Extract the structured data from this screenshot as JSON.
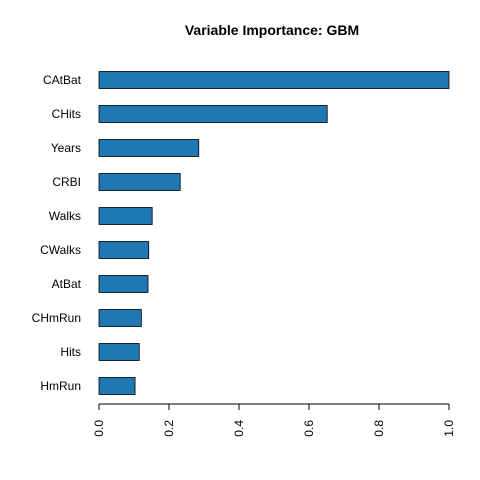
{
  "chart_data": {
    "type": "bar",
    "orientation": "horizontal",
    "title": "Variable Importance: GBM",
    "xlabel": "",
    "ylabel": "",
    "categories": [
      "CAtBat",
      "CHits",
      "Years",
      "CRBI",
      "Walks",
      "CWalks",
      "AtBat",
      "CHmRun",
      "Hits",
      "HmRun"
    ],
    "values": [
      1.0,
      0.652,
      0.285,
      0.232,
      0.152,
      0.142,
      0.14,
      0.121,
      0.115,
      0.103
    ],
    "xlim": [
      0,
      1
    ],
    "x_ticks": [
      0,
      0.2,
      0.4,
      0.6,
      0.8,
      1.0
    ],
    "x_tick_labels": [
      "0.0",
      "0.2",
      "0.4",
      "0.6",
      "0.8",
      "1.0"
    ],
    "tick_label_rotation": "vertical",
    "grid": false,
    "legend": "none",
    "bar_color": "#1f77b4",
    "bar_edge_color": "#000000"
  }
}
